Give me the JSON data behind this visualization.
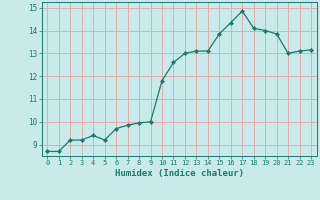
{
  "x": [
    0,
    1,
    2,
    3,
    4,
    5,
    6,
    7,
    8,
    9,
    10,
    11,
    12,
    13,
    14,
    15,
    16,
    17,
    18,
    19,
    20,
    21,
    22,
    23
  ],
  "y": [
    8.7,
    8.7,
    9.2,
    9.2,
    9.4,
    9.2,
    9.7,
    9.85,
    9.95,
    10.0,
    11.8,
    12.6,
    13.0,
    13.1,
    13.1,
    13.85,
    14.35,
    14.85,
    14.1,
    14.0,
    13.85,
    13.0,
    13.1,
    13.15
  ],
  "line_color": "#1a7a6e",
  "marker_color": "#1a7a6e",
  "bg_color": "#c8eaea",
  "grid_color": "#e8a0a0",
  "xlabel": "Humidex (Indice chaleur)",
  "ylim": [
    8.5,
    15.25
  ],
  "xlim": [
    -0.5,
    23.5
  ],
  "yticks": [
    9,
    10,
    11,
    12,
    13,
    14,
    15
  ],
  "xticks": [
    0,
    1,
    2,
    3,
    4,
    5,
    6,
    7,
    8,
    9,
    10,
    11,
    12,
    13,
    14,
    15,
    16,
    17,
    18,
    19,
    20,
    21,
    22,
    23
  ]
}
